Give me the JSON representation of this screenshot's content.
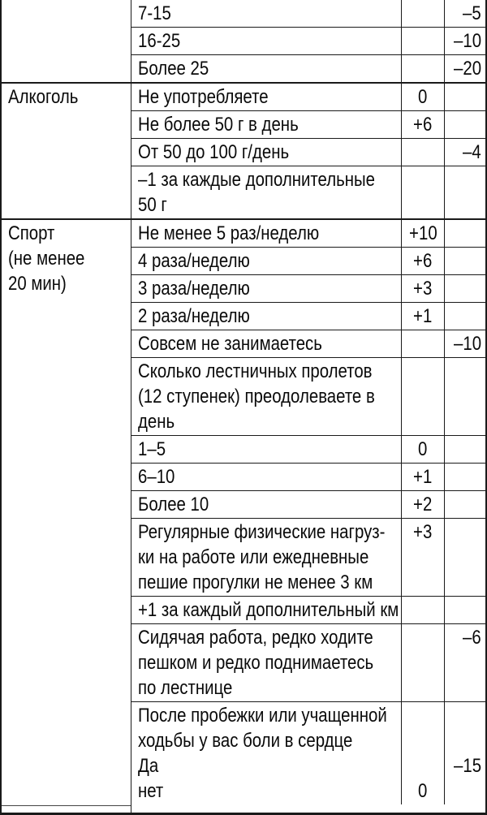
{
  "page": {
    "background_color": "#ffffff",
    "text_color": "#0a0a0a",
    "border_color": "#1a1a1a"
  },
  "table": {
    "description": "score-questionnaire-table",
    "columns": [
      "category",
      "item",
      "plus_points",
      "minus_points"
    ],
    "sections": [
      {
        "category": "",
        "rows": [
          {
            "item": "7-15",
            "plus": "",
            "minus": "–5"
          },
          {
            "item": "16-25",
            "plus": "",
            "minus": "–10"
          },
          {
            "item": "Более 25",
            "plus": "",
            "minus": "–20"
          }
        ]
      },
      {
        "category": "Алкоголь",
        "rows": [
          {
            "item": "Не употребляете",
            "plus": "0",
            "minus": ""
          },
          {
            "item": "Не более 50 г в день",
            "plus": "+6",
            "minus": ""
          },
          {
            "item": "От 50 до 100 г/день",
            "plus": "",
            "minus": "–4"
          },
          {
            "item": "–1 за каждые дополнительные\n50 г",
            "plus": "",
            "minus": ""
          }
        ]
      },
      {
        "category": "Спорт\n(не менее\n20 мин)",
        "rows": [
          {
            "item": "Не менее 5 раз/неделю",
            "plus": "+10",
            "minus": ""
          },
          {
            "item": "4 раза/неделю",
            "plus": "+6",
            "minus": ""
          },
          {
            "item": "3 раза/неделю",
            "plus": "+3",
            "minus": ""
          },
          {
            "item": "2 раза/неделю",
            "plus": "+1",
            "minus": ""
          },
          {
            "item": "Совсем не занимаетесь",
            "plus": "",
            "minus": "–10"
          },
          {
            "item": "Сколько лестничных пролетов\n(12 ступенек) преодолеваете в\nдень",
            "plus": "",
            "minus": ""
          },
          {
            "item": "1–5",
            "plus": "0",
            "minus": ""
          },
          {
            "item": "6–10",
            "plus": "+1",
            "minus": ""
          },
          {
            "item": "Более 10",
            "plus": "+2",
            "minus": ""
          },
          {
            "item": "Регулярные физические нагруз-\nки на работе или ежедневные\nпешие прогулки не менее 3 км",
            "plus": "+3",
            "minus": ""
          },
          {
            "item": "+1 за каждый дополнительный км",
            "plus": "",
            "minus": ""
          },
          {
            "item": "Сидячая работа, редко ходите\nпешком и редко поднимаетесь\nпо лестнице",
            "plus": "",
            "minus": "–6"
          },
          {
            "item": "После пробежки или учащенной\nходьбы у вас боли в сердце\nДа\nнет",
            "plus": "0",
            "minus": "–15",
            "plus_offset_lines": 3,
            "minus_offset_lines": 2
          }
        ]
      }
    ]
  }
}
